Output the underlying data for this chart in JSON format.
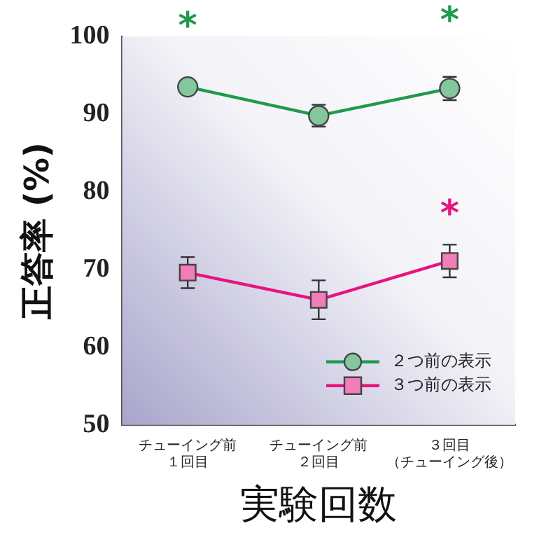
{
  "chart_data": {
    "type": "line",
    "ylabel": "正答率 (%)",
    "xlabel": "実験回数",
    "categories": [
      "チューイング前１回目",
      "チューイング前２回目",
      "３回目（チューイング後）"
    ],
    "series": [
      {
        "name": "２つ前の表示",
        "color": "#1f9a4c",
        "marker": "circle",
        "values": [
          93.5,
          89.8,
          93.3
        ],
        "errors": [
          null,
          1.4,
          1.5
        ]
      },
      {
        "name": "３つ前の表示",
        "color": "#e8137f",
        "marker": "square",
        "values": [
          69.6,
          66.1,
          71.1
        ],
        "errors": [
          2.0,
          2.5,
          2.1
        ]
      }
    ],
    "ylim": [
      50,
      100
    ],
    "yticks": [
      50,
      60,
      70,
      80,
      90,
      100
    ],
    "grid": false,
    "legend": "bottom right",
    "annotations": [
      "*",
      "*",
      "*"
    ]
  }
}
